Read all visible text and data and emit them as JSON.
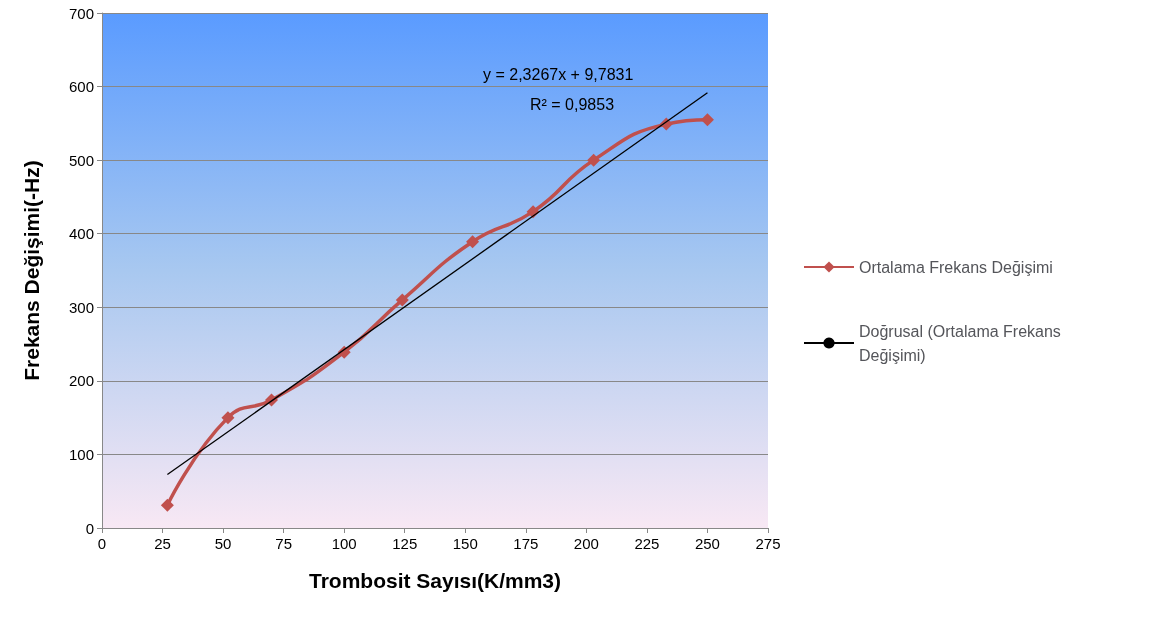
{
  "chart_data": {
    "type": "line",
    "xlabel": "Trombosit Sayısı(K/mm3)",
    "ylabel": "Frekans Değişimi(-Hz)",
    "series": [
      {
        "name": "Ortalama Frekans Değişimi",
        "color": "#c0504d",
        "marker": "diamond",
        "x": [
          27,
          52,
          70,
          100,
          124,
          153,
          178,
          203,
          233,
          250
        ],
        "values": [
          31,
          150,
          174,
          239,
          310,
          389,
          430,
          500,
          549,
          555
        ]
      },
      {
        "name": "Doğrusal (Ortalama Frekans Değişimi)",
        "color": "#000000",
        "marker": "none",
        "x": [
          27,
          250
        ],
        "values": [
          72.6,
          591.5
        ]
      }
    ],
    "annotations": [
      "y = 2,3267x + 9,7831",
      "R² = 0,9853"
    ],
    "xlim": [
      0,
      275
    ],
    "xticks": [
      0,
      25,
      50,
      75,
      100,
      125,
      150,
      175,
      200,
      225,
      250,
      275
    ],
    "ylim": [
      0,
      700
    ],
    "yticks": [
      0,
      100,
      200,
      300,
      400,
      500,
      600,
      700
    ],
    "grid": "y",
    "legend": "right"
  }
}
